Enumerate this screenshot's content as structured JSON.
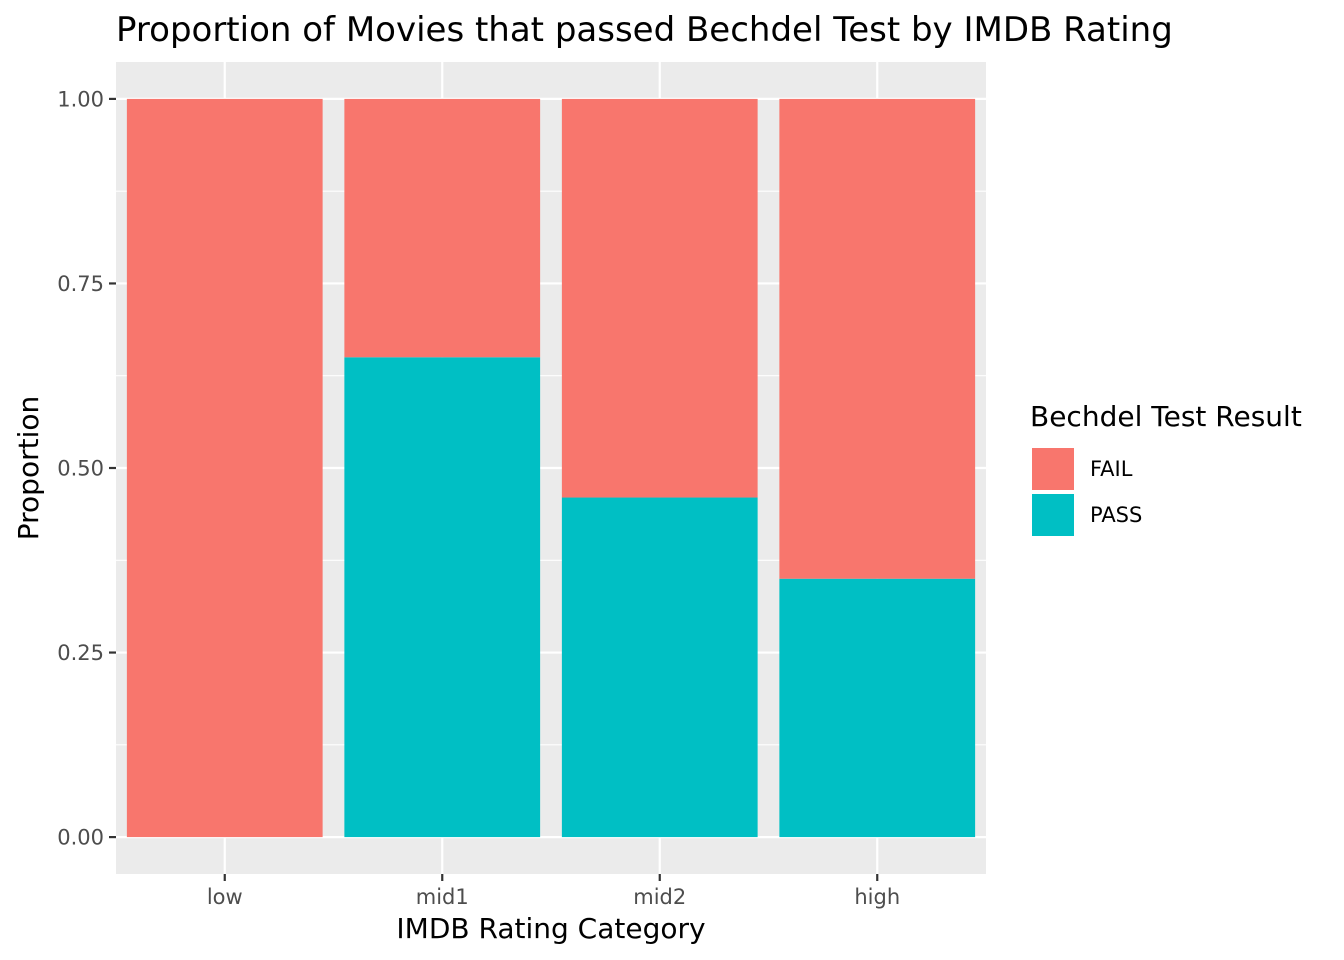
{
  "chart_data": {
    "type": "bar",
    "stacked": true,
    "title": "Proportion of Movies that passed Bechdel Test by IMDB Rating",
    "xlabel": "IMDB Rating Category",
    "ylabel": "Proportion",
    "categories": [
      "low",
      "mid1",
      "mid2",
      "high"
    ],
    "series": [
      {
        "name": "FAIL",
        "color": "#F8766D",
        "values": [
          1.0,
          0.35,
          0.54,
          0.65
        ]
      },
      {
        "name": "PASS",
        "color": "#00BFC4",
        "values": [
          0.0,
          0.65,
          0.46,
          0.35
        ]
      }
    ],
    "stack_order": [
      "PASS",
      "FAIL"
    ],
    "ylim": [
      -0.05,
      1.05
    ],
    "yticks": [
      0.0,
      0.25,
      0.5,
      0.75,
      1.0
    ],
    "ytick_labels": [
      "0.00",
      "0.25",
      "0.50",
      "0.75",
      "1.00"
    ],
    "grid": true,
    "panel_background": "#EBEBEB",
    "grid_color": "#FFFFFF",
    "legend": {
      "title": "Bechdel Test Result",
      "position": "right"
    }
  }
}
